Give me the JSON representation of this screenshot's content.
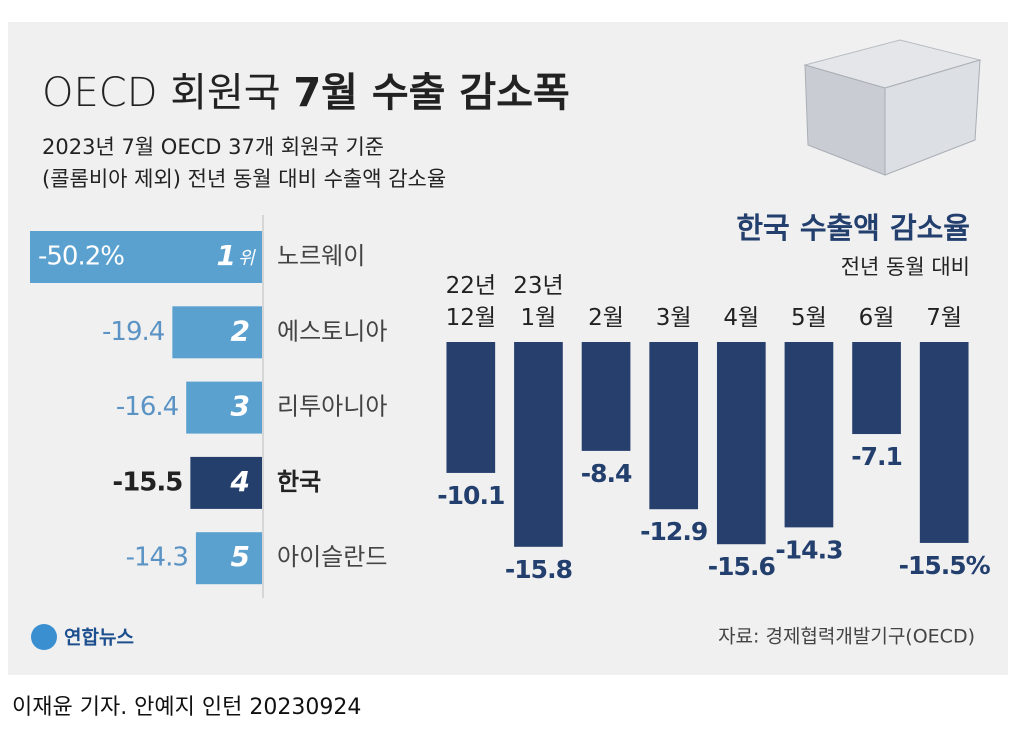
{
  "header": {
    "title_light": "OECD 회원국",
    "title_bold": "7월 수출 감소폭",
    "subtitle": [
      "2023년 7월 OECD 37개 회원국 기준",
      "(콜롬비아 제외) 전년 동월 대비 수출액 감소율"
    ]
  },
  "chart_data": [
    {
      "type": "hbar",
      "categories": [
        "노르웨이",
        "에스토니아",
        "리투아니아",
        "한국",
        "아이슬란드"
      ],
      "values": [
        -50.2,
        -19.4,
        -16.4,
        -15.5,
        -14.3
      ],
      "value_labels": [
        "-50.2%",
        "-19.4",
        "-16.4",
        "-15.5",
        "-14.3"
      ],
      "ranks": [
        1,
        2,
        3,
        4,
        5
      ],
      "rank_suffix": "위",
      "colors": [
        "#5ba1d0",
        "#5ba1d0",
        "#5ba1d0",
        "#243f6c",
        "#5ba1d0"
      ],
      "highlight_color": "#243f6c",
      "xlim": [
        -50.2,
        0
      ]
    },
    {
      "type": "bar",
      "title": "한국 수출액 감소율",
      "subtitle": "전년 동월 대비",
      "categories": [
        "22년 12월",
        "23년 1월",
        "2월",
        "3월",
        "4월",
        "5월",
        "6월",
        "7월"
      ],
      "values": [
        -10.1,
        -15.8,
        -8.4,
        -12.9,
        -15.6,
        -14.3,
        -7.1,
        -15.5
      ],
      "value_labels": [
        "-10.1",
        "-15.8",
        "-8.4",
        "-12.9",
        "-15.6",
        "-14.3",
        "-7.1",
        "-15.5%"
      ],
      "color": "#263f6c",
      "label_color": "#233f6d",
      "ylim": [
        -16.2,
        0
      ]
    }
  ],
  "source": "자료: 경제협력개발기구(OECD)",
  "logo": "연합뉴스",
  "credit": "이재윤 기자. 안예지 인턴  20230924"
}
